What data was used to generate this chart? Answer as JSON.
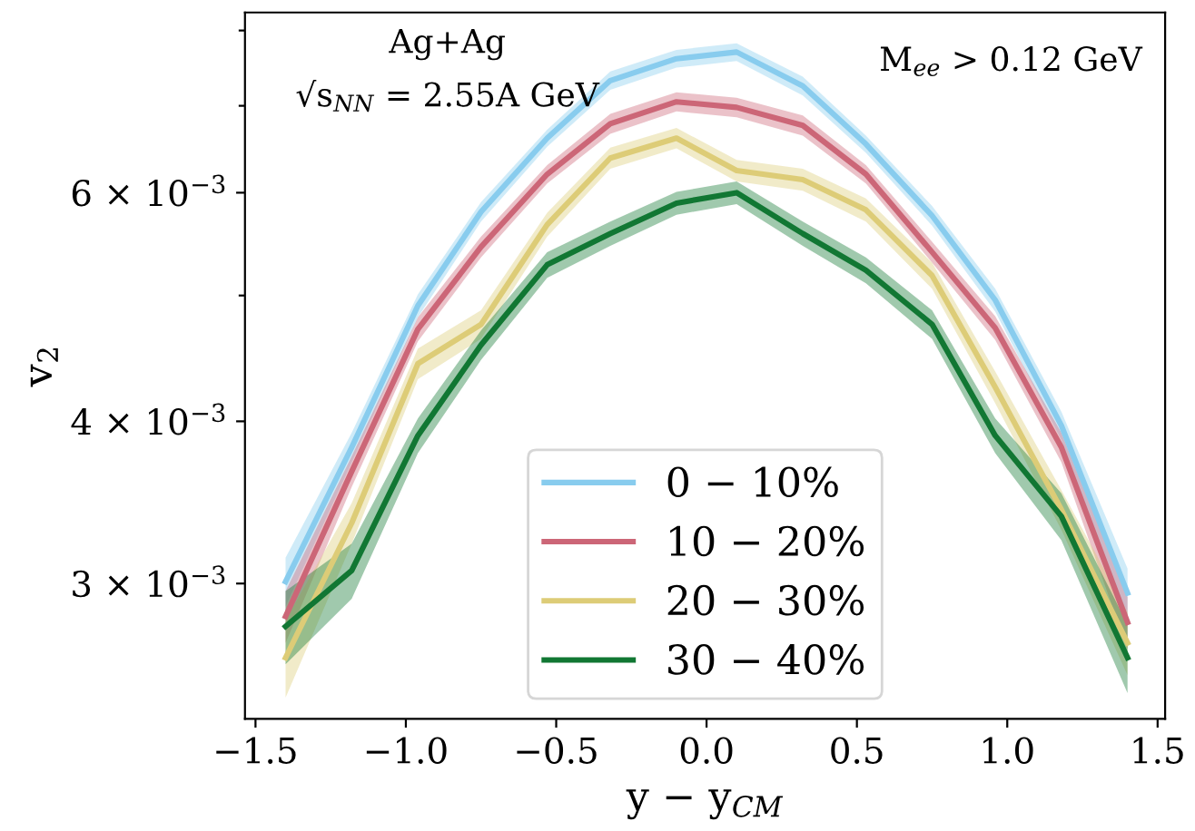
{
  "chart_data": {
    "type": "line",
    "xlabel": "y − y$_{CM}$",
    "ylabel": "v$_{2}$",
    "annotations": [
      "Ag+Ag",
      "√s$_{NN}$ = 2.55A GeV",
      "M$_{ee}$ > 0.12 GeV"
    ],
    "x": [
      -1.4,
      -1.18,
      -0.96,
      -0.75,
      -0.53,
      -0.32,
      -0.1,
      0.1,
      0.32,
      0.53,
      0.75,
      0.96,
      1.18,
      1.4
    ],
    "series": [
      {
        "name": "0 − 10%",
        "color": "#88ccee",
        "values": [
          0.00301,
          0.00382,
          0.00491,
          0.0058,
          0.00661,
          0.00732,
          0.00761,
          0.0077,
          0.00725,
          0.00654,
          0.00576,
          0.00496,
          0.00397,
          0.00295
        ],
        "lower": [
          0.00288,
          0.00372,
          0.00481,
          0.0057,
          0.00651,
          0.0072,
          0.00749,
          0.00758,
          0.00713,
          0.00644,
          0.00566,
          0.00486,
          0.00387,
          0.00282
        ],
        "upper": [
          0.00314,
          0.00392,
          0.00501,
          0.0059,
          0.00671,
          0.00744,
          0.00773,
          0.00782,
          0.00737,
          0.00664,
          0.00586,
          0.00506,
          0.00407,
          0.00308
        ]
      },
      {
        "name": "10 − 20%",
        "color": "#cc6677",
        "values": [
          0.00283,
          0.00366,
          0.00471,
          0.00545,
          0.0062,
          0.00678,
          0.00705,
          0.00698,
          0.00676,
          0.0062,
          0.0054,
          0.00472,
          0.00382,
          0.0028
        ],
        "lower": [
          0.0027,
          0.00356,
          0.00461,
          0.00535,
          0.0061,
          0.00666,
          0.00693,
          0.00686,
          0.00664,
          0.0061,
          0.0053,
          0.00462,
          0.00372,
          0.00267
        ],
        "upper": [
          0.00296,
          0.00376,
          0.00481,
          0.00555,
          0.0063,
          0.0069,
          0.00717,
          0.0071,
          0.00688,
          0.0063,
          0.0055,
          0.00482,
          0.00392,
          0.00293
        ]
      },
      {
        "name": "20 − 30%",
        "color": "#ddcc77",
        "values": [
          0.00263,
          0.00334,
          0.00443,
          0.00475,
          0.00567,
          0.00638,
          0.00661,
          0.00624,
          0.00614,
          0.00582,
          0.00518,
          0.00425,
          0.00342,
          0.0027
        ],
        "lower": [
          0.00245,
          0.00322,
          0.00431,
          0.00463,
          0.00555,
          0.00626,
          0.00649,
          0.00612,
          0.00602,
          0.0057,
          0.00506,
          0.00413,
          0.0033,
          0.00255
        ],
        "upper": [
          0.00281,
          0.00346,
          0.00455,
          0.00487,
          0.00579,
          0.0065,
          0.00673,
          0.00636,
          0.00626,
          0.00594,
          0.0053,
          0.00437,
          0.00354,
          0.00285
        ]
      },
      {
        "name": "30 − 40%",
        "color": "#117733",
        "values": [
          0.00278,
          0.00307,
          0.0039,
          0.00458,
          0.00528,
          0.00558,
          0.00589,
          0.006,
          0.00558,
          0.00523,
          0.00475,
          0.0039,
          0.00338,
          0.00263
        ],
        "lower": [
          0.0026,
          0.00292,
          0.00378,
          0.00446,
          0.00516,
          0.00546,
          0.00577,
          0.00588,
          0.00546,
          0.00511,
          0.00463,
          0.00378,
          0.00324,
          0.00247
        ],
        "upper": [
          0.00296,
          0.00322,
          0.00402,
          0.0047,
          0.0054,
          0.0057,
          0.00601,
          0.00612,
          0.0057,
          0.00535,
          0.00487,
          0.00402,
          0.00352,
          0.00279
        ]
      }
    ],
    "log": "y",
    "xlim": [
      -1.535,
      1.525
    ],
    "ylim": [
      0.00236,
      0.00826
    ],
    "xticks": [
      {
        "value": -1.5,
        "label": "−1.5"
      },
      {
        "value": -1.0,
        "label": "−1.0"
      },
      {
        "value": -0.5,
        "label": "−0.5"
      },
      {
        "value": 0.0,
        "label": "0.0"
      },
      {
        "value": 0.5,
        "label": "0.5"
      },
      {
        "value": 1.0,
        "label": "1.0"
      },
      {
        "value": 1.5,
        "label": "1.5"
      }
    ],
    "yticks": [
      {
        "value": 0.003,
        "label": "3 × 10$^{−3}$"
      },
      {
        "value": 0.004,
        "label": "4 × 10$^{−3}$"
      },
      {
        "value": 0.005,
        "label": null
      },
      {
        "value": 0.006,
        "label": "6 × 10$^{−3}$"
      },
      {
        "value": 0.007,
        "label": null
      },
      {
        "value": 0.008,
        "label": null
      }
    ],
    "grid": false,
    "legend": "bottom",
    "marker": "none",
    "line_style": "solid"
  }
}
